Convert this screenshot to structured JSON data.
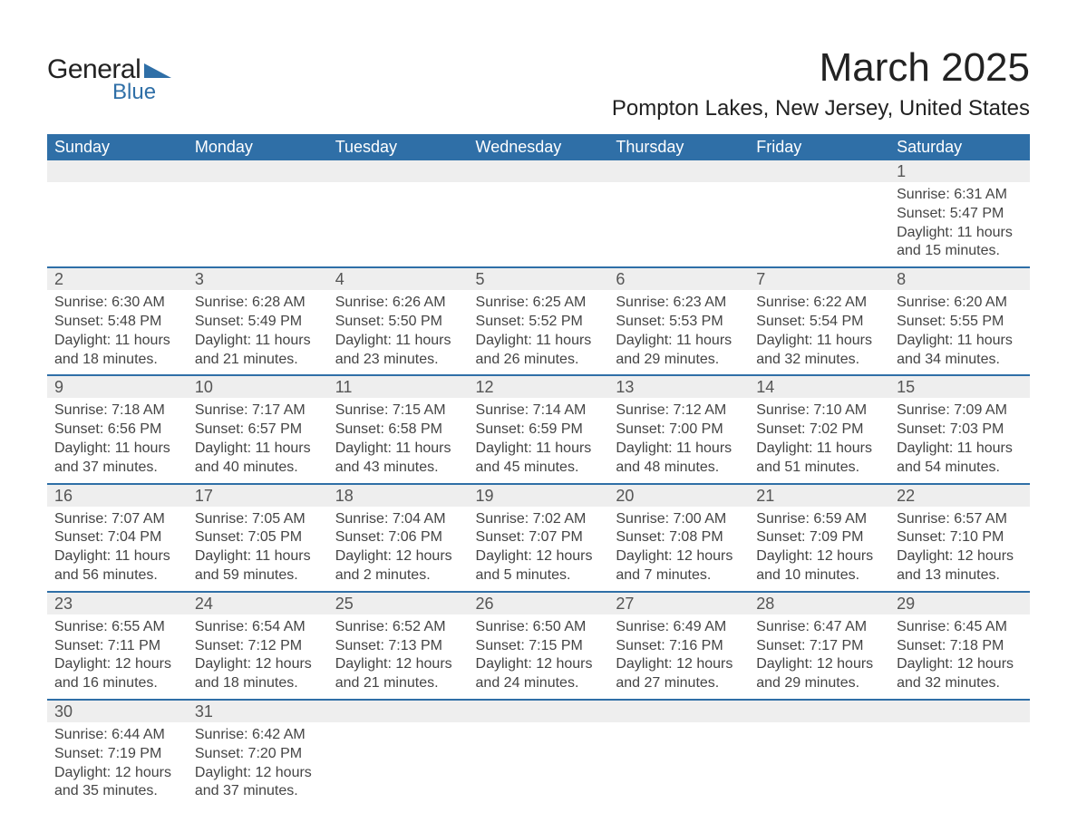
{
  "logo": {
    "text_general": "General",
    "text_blue": "Blue",
    "triangle_color": "#2f6fa7"
  },
  "title": {
    "month": "March 2025",
    "location": "Pompton Lakes, New Jersey, United States"
  },
  "styling": {
    "header_bg": "#2f6fa7",
    "header_text": "#ffffff",
    "daynum_bg": "#eeeeee",
    "row_divider": "#2f6fa7",
    "body_text": "#444444",
    "page_bg": "#ffffff",
    "month_fontsize": 44,
    "location_fontsize": 24,
    "header_fontsize": 18,
    "daynum_fontsize": 18,
    "detail_fontsize": 16
  },
  "day_headers": [
    "Sunday",
    "Monday",
    "Tuesday",
    "Wednesday",
    "Thursday",
    "Friday",
    "Saturday"
  ],
  "weeks": [
    [
      null,
      null,
      null,
      null,
      null,
      null,
      {
        "n": "1",
        "sr": "Sunrise: 6:31 AM",
        "ss": "Sunset: 5:47 PM",
        "d1": "Daylight: 11 hours",
        "d2": "and 15 minutes."
      }
    ],
    [
      {
        "n": "2",
        "sr": "Sunrise: 6:30 AM",
        "ss": "Sunset: 5:48 PM",
        "d1": "Daylight: 11 hours",
        "d2": "and 18 minutes."
      },
      {
        "n": "3",
        "sr": "Sunrise: 6:28 AM",
        "ss": "Sunset: 5:49 PM",
        "d1": "Daylight: 11 hours",
        "d2": "and 21 minutes."
      },
      {
        "n": "4",
        "sr": "Sunrise: 6:26 AM",
        "ss": "Sunset: 5:50 PM",
        "d1": "Daylight: 11 hours",
        "d2": "and 23 minutes."
      },
      {
        "n": "5",
        "sr": "Sunrise: 6:25 AM",
        "ss": "Sunset: 5:52 PM",
        "d1": "Daylight: 11 hours",
        "d2": "and 26 minutes."
      },
      {
        "n": "6",
        "sr": "Sunrise: 6:23 AM",
        "ss": "Sunset: 5:53 PM",
        "d1": "Daylight: 11 hours",
        "d2": "and 29 minutes."
      },
      {
        "n": "7",
        "sr": "Sunrise: 6:22 AM",
        "ss": "Sunset: 5:54 PM",
        "d1": "Daylight: 11 hours",
        "d2": "and 32 minutes."
      },
      {
        "n": "8",
        "sr": "Sunrise: 6:20 AM",
        "ss": "Sunset: 5:55 PM",
        "d1": "Daylight: 11 hours",
        "d2": "and 34 minutes."
      }
    ],
    [
      {
        "n": "9",
        "sr": "Sunrise: 7:18 AM",
        "ss": "Sunset: 6:56 PM",
        "d1": "Daylight: 11 hours",
        "d2": "and 37 minutes."
      },
      {
        "n": "10",
        "sr": "Sunrise: 7:17 AM",
        "ss": "Sunset: 6:57 PM",
        "d1": "Daylight: 11 hours",
        "d2": "and 40 minutes."
      },
      {
        "n": "11",
        "sr": "Sunrise: 7:15 AM",
        "ss": "Sunset: 6:58 PM",
        "d1": "Daylight: 11 hours",
        "d2": "and 43 minutes."
      },
      {
        "n": "12",
        "sr": "Sunrise: 7:14 AM",
        "ss": "Sunset: 6:59 PM",
        "d1": "Daylight: 11 hours",
        "d2": "and 45 minutes."
      },
      {
        "n": "13",
        "sr": "Sunrise: 7:12 AM",
        "ss": "Sunset: 7:00 PM",
        "d1": "Daylight: 11 hours",
        "d2": "and 48 minutes."
      },
      {
        "n": "14",
        "sr": "Sunrise: 7:10 AM",
        "ss": "Sunset: 7:02 PM",
        "d1": "Daylight: 11 hours",
        "d2": "and 51 minutes."
      },
      {
        "n": "15",
        "sr": "Sunrise: 7:09 AM",
        "ss": "Sunset: 7:03 PM",
        "d1": "Daylight: 11 hours",
        "d2": "and 54 minutes."
      }
    ],
    [
      {
        "n": "16",
        "sr": "Sunrise: 7:07 AM",
        "ss": "Sunset: 7:04 PM",
        "d1": "Daylight: 11 hours",
        "d2": "and 56 minutes."
      },
      {
        "n": "17",
        "sr": "Sunrise: 7:05 AM",
        "ss": "Sunset: 7:05 PM",
        "d1": "Daylight: 11 hours",
        "d2": "and 59 minutes."
      },
      {
        "n": "18",
        "sr": "Sunrise: 7:04 AM",
        "ss": "Sunset: 7:06 PM",
        "d1": "Daylight: 12 hours",
        "d2": "and 2 minutes."
      },
      {
        "n": "19",
        "sr": "Sunrise: 7:02 AM",
        "ss": "Sunset: 7:07 PM",
        "d1": "Daylight: 12 hours",
        "d2": "and 5 minutes."
      },
      {
        "n": "20",
        "sr": "Sunrise: 7:00 AM",
        "ss": "Sunset: 7:08 PM",
        "d1": "Daylight: 12 hours",
        "d2": "and 7 minutes."
      },
      {
        "n": "21",
        "sr": "Sunrise: 6:59 AM",
        "ss": "Sunset: 7:09 PM",
        "d1": "Daylight: 12 hours",
        "d2": "and 10 minutes."
      },
      {
        "n": "22",
        "sr": "Sunrise: 6:57 AM",
        "ss": "Sunset: 7:10 PM",
        "d1": "Daylight: 12 hours",
        "d2": "and 13 minutes."
      }
    ],
    [
      {
        "n": "23",
        "sr": "Sunrise: 6:55 AM",
        "ss": "Sunset: 7:11 PM",
        "d1": "Daylight: 12 hours",
        "d2": "and 16 minutes."
      },
      {
        "n": "24",
        "sr": "Sunrise: 6:54 AM",
        "ss": "Sunset: 7:12 PM",
        "d1": "Daylight: 12 hours",
        "d2": "and 18 minutes."
      },
      {
        "n": "25",
        "sr": "Sunrise: 6:52 AM",
        "ss": "Sunset: 7:13 PM",
        "d1": "Daylight: 12 hours",
        "d2": "and 21 minutes."
      },
      {
        "n": "26",
        "sr": "Sunrise: 6:50 AM",
        "ss": "Sunset: 7:15 PM",
        "d1": "Daylight: 12 hours",
        "d2": "and 24 minutes."
      },
      {
        "n": "27",
        "sr": "Sunrise: 6:49 AM",
        "ss": "Sunset: 7:16 PM",
        "d1": "Daylight: 12 hours",
        "d2": "and 27 minutes."
      },
      {
        "n": "28",
        "sr": "Sunrise: 6:47 AM",
        "ss": "Sunset: 7:17 PM",
        "d1": "Daylight: 12 hours",
        "d2": "and 29 minutes."
      },
      {
        "n": "29",
        "sr": "Sunrise: 6:45 AM",
        "ss": "Sunset: 7:18 PM",
        "d1": "Daylight: 12 hours",
        "d2": "and 32 minutes."
      }
    ],
    [
      {
        "n": "30",
        "sr": "Sunrise: 6:44 AM",
        "ss": "Sunset: 7:19 PM",
        "d1": "Daylight: 12 hours",
        "d2": "and 35 minutes."
      },
      {
        "n": "31",
        "sr": "Sunrise: 6:42 AM",
        "ss": "Sunset: 7:20 PM",
        "d1": "Daylight: 12 hours",
        "d2": "and 37 minutes."
      },
      null,
      null,
      null,
      null,
      null
    ]
  ]
}
